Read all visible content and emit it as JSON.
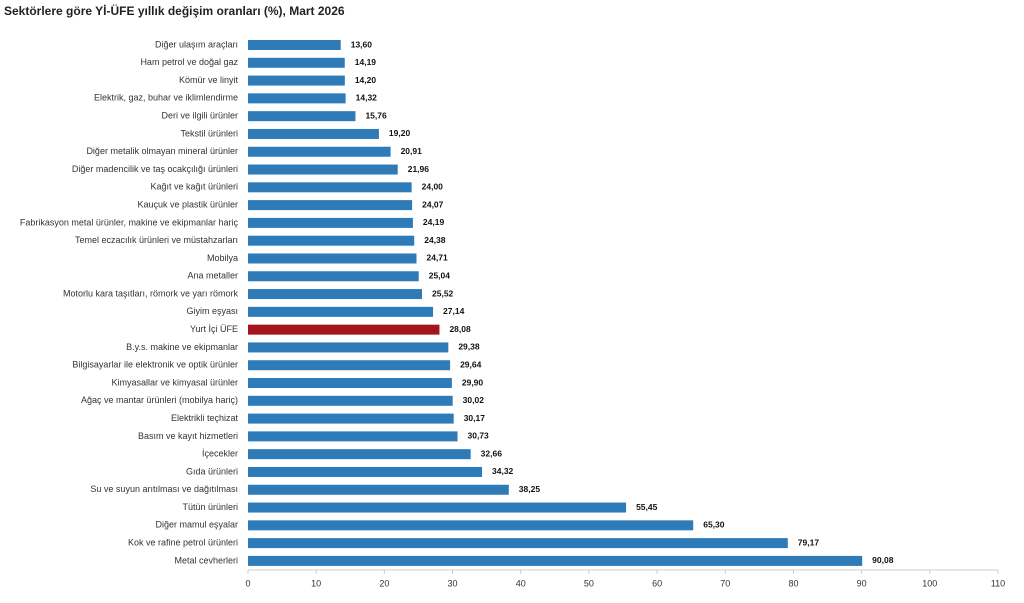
{
  "chart_data": {
    "type": "hbar",
    "title": "Sektörlere göre Yİ-ÜFE yıllık değişim oranları (%), Mart 2026",
    "categories": [
      "Diğer ulaşım araçları",
      "Ham petrol ve doğal gaz",
      "Kömür ve linyit",
      "Elektrik, gaz, buhar ve iklimlendirme",
      "Deri ve ilgili ürünler",
      "Tekstil ürünleri",
      "Diğer metalik olmayan mineral ürünler",
      "Diğer madencilik ve taş ocakçılığı ürünleri",
      "Kağıt ve kağıt ürünleri",
      "Kauçuk ve plastik ürünler",
      "Fabrikasyon metal ürünler, makine ve ekipmanlar hariç",
      "Temel eczacılık ürünleri ve müstahzarları",
      "Mobilya",
      "Ana metaller",
      "Motorlu kara taşıtları, römork ve yarı römork",
      "Giyim eşyası",
      "Yurt İçi ÜFE",
      "B.y.s. makine ve ekipmanlar",
      "Bilgisayarlar ile elektronik ve optik ürünler",
      "Kimyasallar ve kimyasal ürünler",
      "Ağaç ve mantar ürünleri (mobilya hariç)",
      "Elektrikli teçhizat",
      "Basım ve kayıt hizmetleri",
      "İçecekler",
      "Gıda ürünleri",
      "Su ve suyun arıtılması ve dağıtılması",
      "Tütün ürünleri",
      "Diğer mamul eşyalar",
      "Kok ve rafine petrol ürünleri",
      "Metal cevherleri"
    ],
    "values": [
      13.6,
      14.19,
      14.2,
      14.32,
      15.76,
      19.2,
      20.91,
      21.96,
      24.0,
      24.07,
      24.19,
      24.38,
      24.71,
      25.04,
      25.52,
      27.14,
      28.08,
      29.38,
      29.64,
      29.9,
      30.02,
      30.17,
      30.73,
      32.66,
      34.32,
      38.25,
      55.45,
      65.3,
      79.17,
      90.08
    ],
    "value_labels": [
      "13,60",
      "14,19",
      "14,20",
      "14,32",
      "15,76",
      "19,20",
      "20,91",
      "21,96",
      "24,00",
      "24,07",
      "24,19",
      "24,38",
      "24,71",
      "25,04",
      "25,52",
      "27,14",
      "28,08",
      "29,38",
      "29,64",
      "29,90",
      "30,02",
      "30,17",
      "30,73",
      "32,66",
      "34,32",
      "38,25",
      "55,45",
      "65,30",
      "79,17",
      "90,08"
    ],
    "colors": [
      "#2f7bb8",
      "#2f7bb8",
      "#2f7bb8",
      "#2f7bb8",
      "#2f7bb8",
      "#2f7bb8",
      "#2f7bb8",
      "#2f7bb8",
      "#2f7bb8",
      "#2f7bb8",
      "#2f7bb8",
      "#2f7bb8",
      "#2f7bb8",
      "#2f7bb8",
      "#2f7bb8",
      "#2f7bb8",
      "#a3151b",
      "#2f7bb8",
      "#2f7bb8",
      "#2f7bb8",
      "#2f7bb8",
      "#2f7bb8",
      "#2f7bb8",
      "#2f7bb8",
      "#2f7bb8",
      "#2f7bb8",
      "#2f7bb8",
      "#2f7bb8",
      "#2f7bb8",
      "#2f7bb8"
    ],
    "xlim": [
      0,
      110
    ],
    "xticks": [
      0,
      10,
      20,
      30,
      40,
      50,
      60,
      70,
      80,
      90,
      100,
      110
    ]
  }
}
